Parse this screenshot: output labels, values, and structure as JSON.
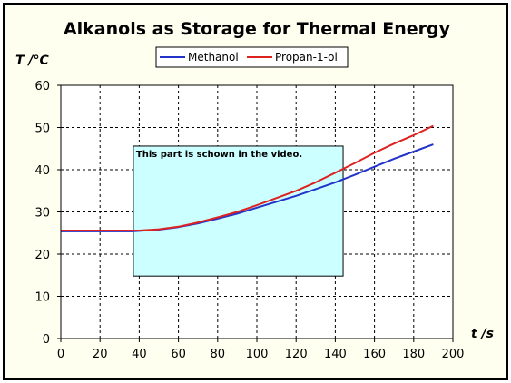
{
  "chart_data": {
    "type": "line",
    "title": "Alkanols as Storage for Thermal Energy",
    "ylabel": "T /°C",
    "xlabel": "t /s",
    "xlim": [
      0,
      200
    ],
    "ylim": [
      0,
      60
    ],
    "xticks": [
      0,
      20,
      40,
      60,
      80,
      100,
      120,
      140,
      160,
      180,
      200
    ],
    "yticks": [
      0,
      10,
      20,
      30,
      40,
      50,
      60
    ],
    "grid": true,
    "legend_position": "top",
    "series": [
      {
        "name": "Methanol",
        "color": "#2233cc",
        "x": [
          0,
          10,
          20,
          30,
          36,
          40,
          50,
          60,
          70,
          80,
          90,
          100,
          110,
          120,
          130,
          140,
          150,
          160,
          170,
          180,
          190
        ],
        "y": [
          25.4,
          25.4,
          25.4,
          25.4,
          25.4,
          25.5,
          25.8,
          26.4,
          27.3,
          28.4,
          29.6,
          31.0,
          32.4,
          33.8,
          35.4,
          37.0,
          38.8,
          40.7,
          42.6,
          44.3,
          46.0
        ]
      },
      {
        "name": "Propan-1-ol",
        "color": "#dd2222",
        "x": [
          0,
          10,
          20,
          30,
          36,
          40,
          50,
          60,
          70,
          80,
          90,
          100,
          110,
          120,
          130,
          140,
          150,
          160,
          170,
          180,
          190
        ],
        "y": [
          25.6,
          25.6,
          25.6,
          25.6,
          25.6,
          25.6,
          25.9,
          26.5,
          27.5,
          28.7,
          30.0,
          31.6,
          33.3,
          35.0,
          37.0,
          39.3,
          41.6,
          44.0,
          46.2,
          48.2,
          50.4
        ]
      }
    ],
    "annotation": {
      "text": "This part is schown in the video.",
      "x_range": [
        37,
        144
      ],
      "y_range": [
        14.8,
        45.6
      ],
      "fill": "#ccffff"
    }
  },
  "colors": {
    "chart_background": "#fffff0",
    "plot_background": "#ffffff",
    "frame_border": "#000000",
    "grid": "#000000"
  }
}
